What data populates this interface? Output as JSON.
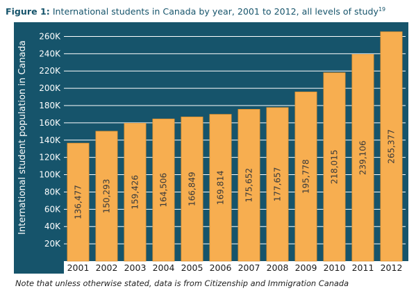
{
  "figure": {
    "title_lead": "Figure 1:",
    "title_rest": " International students in Canada by year, 2001 to 2012, all levels of study",
    "title_sup": "19",
    "note": "Note that unless otherwise stated, data is from Citizenship and Immigration Canada"
  },
  "colors": {
    "panel": "#16546b",
    "bar": "#f7ae50",
    "bar_stroke": "#e2922e",
    "gridline": "#ffffff"
  },
  "chart_data": {
    "type": "bar",
    "title": "International students in Canada by year, 2001 to 2012, all levels of study",
    "ylabel": "International student population in Canada",
    "xlabel": "",
    "ylim": [
      0,
      270000
    ],
    "grid": true,
    "categories": [
      "2001",
      "2002",
      "2003",
      "2004",
      "2005",
      "2006",
      "2007",
      "2008",
      "2009",
      "2010",
      "2011",
      "2012"
    ],
    "values": [
      136477,
      150293,
      159426,
      164506,
      166849,
      169814,
      175652,
      177657,
      195778,
      218015,
      239106,
      265377
    ],
    "data_labels": [
      "136,477",
      "150,293",
      "159,426",
      "164,506",
      "166,849",
      "169,814",
      "175,652",
      "177,657",
      "195,778",
      "218,015",
      "239,106",
      "265,377"
    ],
    "yticks": [
      20000,
      40000,
      60000,
      80000,
      100000,
      120000,
      140000,
      160000,
      180000,
      200000,
      220000,
      240000,
      260000
    ],
    "ytick_labels": [
      "20K",
      "40K",
      "60K",
      "80K",
      "100K",
      "120K",
      "140K",
      "160K",
      "180K",
      "200K",
      "220K",
      "240K",
      "260K"
    ]
  }
}
